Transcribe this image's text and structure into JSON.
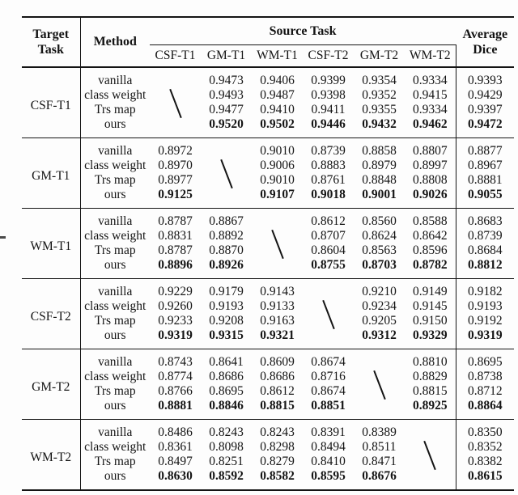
{
  "table": {
    "header": {
      "target_task_lines": [
        "Target",
        "Task"
      ],
      "method": "Method",
      "source_task": "Source Task",
      "source_columns": [
        "CSF-T1",
        "GM-T1",
        "WM-T1",
        "CSF-T2",
        "GM-T2",
        "WM-T2"
      ],
      "average_lines": [
        "Average",
        "Dice"
      ]
    },
    "na_symbol": "\\",
    "colors": {
      "text": "#141414",
      "rule": "#141414",
      "background": "#fdfdfd"
    },
    "groups": [
      {
        "target": "CSF-T1",
        "diagonal_column": 0,
        "rows": [
          {
            "method": "vanilla",
            "values": [
              null,
              "0.9473",
              "0.9406",
              "0.9399",
              "0.9354",
              "0.9334"
            ],
            "average": "0.9393",
            "bold": false
          },
          {
            "method": "class weight",
            "values": [
              null,
              "0.9493",
              "0.9487",
              "0.9398",
              "0.9352",
              "0.9415"
            ],
            "average": "0.9429",
            "bold": false
          },
          {
            "method": "Trs map",
            "values": [
              null,
              "0.9477",
              "0.9410",
              "0.9411",
              "0.9355",
              "0.9334"
            ],
            "average": "0.9397",
            "bold": false
          },
          {
            "method": "ours",
            "values": [
              null,
              "0.9520",
              "0.9502",
              "0.9446",
              "0.9432",
              "0.9462"
            ],
            "average": "0.9472",
            "bold": true
          }
        ]
      },
      {
        "target": "GM-T1",
        "diagonal_column": 1,
        "rows": [
          {
            "method": "vanilla",
            "values": [
              "0.8972",
              null,
              "0.9010",
              "0.8739",
              "0.8858",
              "0.8807"
            ],
            "average": "0.8877",
            "bold": false
          },
          {
            "method": "class weight",
            "values": [
              "0.8970",
              null,
              "0.9006",
              "0.8883",
              "0.8979",
              "0.8997"
            ],
            "average": "0.8967",
            "bold": false
          },
          {
            "method": "Trs map",
            "values": [
              "0.8977",
              null,
              "0.9010",
              "0.8761",
              "0.8848",
              "0.8808"
            ],
            "average": "0.8881",
            "bold": false
          },
          {
            "method": "ours",
            "values": [
              "0.9125",
              null,
              "0.9107",
              "0.9018",
              "0.9001",
              "0.9026"
            ],
            "average": "0.9055",
            "bold": true
          }
        ]
      },
      {
        "target": "WM-T1",
        "diagonal_column": 2,
        "rows": [
          {
            "method": "vanilla",
            "values": [
              "0.8787",
              "0.8867",
              null,
              "0.8612",
              "0.8560",
              "0.8588"
            ],
            "average": "0.8683",
            "bold": false
          },
          {
            "method": "class weight",
            "values": [
              "0.8831",
              "0.8892",
              null,
              "0.8707",
              "0.8624",
              "0.8642"
            ],
            "average": "0.8739",
            "bold": false
          },
          {
            "method": "Trs map",
            "values": [
              "0.8787",
              "0.8870",
              null,
              "0.8604",
              "0.8563",
              "0.8596"
            ],
            "average": "0.8684",
            "bold": false
          },
          {
            "method": "ours",
            "values": [
              "0.8896",
              "0.8926",
              null,
              "0.8755",
              "0.8703",
              "0.8782"
            ],
            "average": "0.8812",
            "bold": true
          }
        ]
      },
      {
        "target": "CSF-T2",
        "diagonal_column": 3,
        "rows": [
          {
            "method": "vanilla",
            "values": [
              "0.9229",
              "0.9179",
              "0.9143",
              null,
              "0.9210",
              "0.9149"
            ],
            "average": "0.9182",
            "bold": false
          },
          {
            "method": "class weight",
            "values": [
              "0.9260",
              "0.9193",
              "0.9133",
              null,
              "0.9234",
              "0.9145"
            ],
            "average": "0.9193",
            "bold": false
          },
          {
            "method": "Trs map",
            "values": [
              "0.9233",
              "0.9208",
              "0.9163",
              null,
              "0.9205",
              "0.9150"
            ],
            "average": "0.9192",
            "bold": false
          },
          {
            "method": "ours",
            "values": [
              "0.9319",
              "0.9315",
              "0.9321",
              null,
              "0.9312",
              "0.9329"
            ],
            "average": "0.9319",
            "bold": true
          }
        ]
      },
      {
        "target": "GM-T2",
        "diagonal_column": 4,
        "rows": [
          {
            "method": "vanilla",
            "values": [
              "0.8743",
              "0.8641",
              "0.8609",
              "0.8674",
              null,
              "0.8810"
            ],
            "average": "0.8695",
            "bold": false
          },
          {
            "method": "class weight",
            "values": [
              "0.8774",
              "0.8686",
              "0.8686",
              "0.8716",
              null,
              "0.8829"
            ],
            "average": "0.8738",
            "bold": false
          },
          {
            "method": "Trs map",
            "values": [
              "0.8766",
              "0.8695",
              "0.8612",
              "0.8674",
              null,
              "0.8815"
            ],
            "average": "0.8712",
            "bold": false
          },
          {
            "method": "ours",
            "values": [
              "0.8881",
              "0.8846",
              "0.8815",
              "0.8851",
              null,
              "0.8925"
            ],
            "average": "0.8864",
            "bold": true
          }
        ]
      },
      {
        "target": "WM-T2",
        "diagonal_column": 5,
        "rows": [
          {
            "method": "vanilla",
            "values": [
              "0.8486",
              "0.8243",
              "0.8243",
              "0.8391",
              "0.8389",
              null
            ],
            "average": "0.8350",
            "bold": false
          },
          {
            "method": "class weight",
            "values": [
              "0.8361",
              "0.8098",
              "0.8298",
              "0.8494",
              "0.8511",
              null
            ],
            "average": "0.8352",
            "bold": false
          },
          {
            "method": "Trs map",
            "values": [
              "0.8497",
              "0.8251",
              "0.8279",
              "0.8410",
              "0.8471",
              null
            ],
            "average": "0.8382",
            "bold": false
          },
          {
            "method": "ours",
            "values": [
              "0.8630",
              "0.8592",
              "0.8582",
              "0.8595",
              "0.8676",
              null
            ],
            "average": "0.8615",
            "bold": true
          }
        ]
      }
    ]
  }
}
